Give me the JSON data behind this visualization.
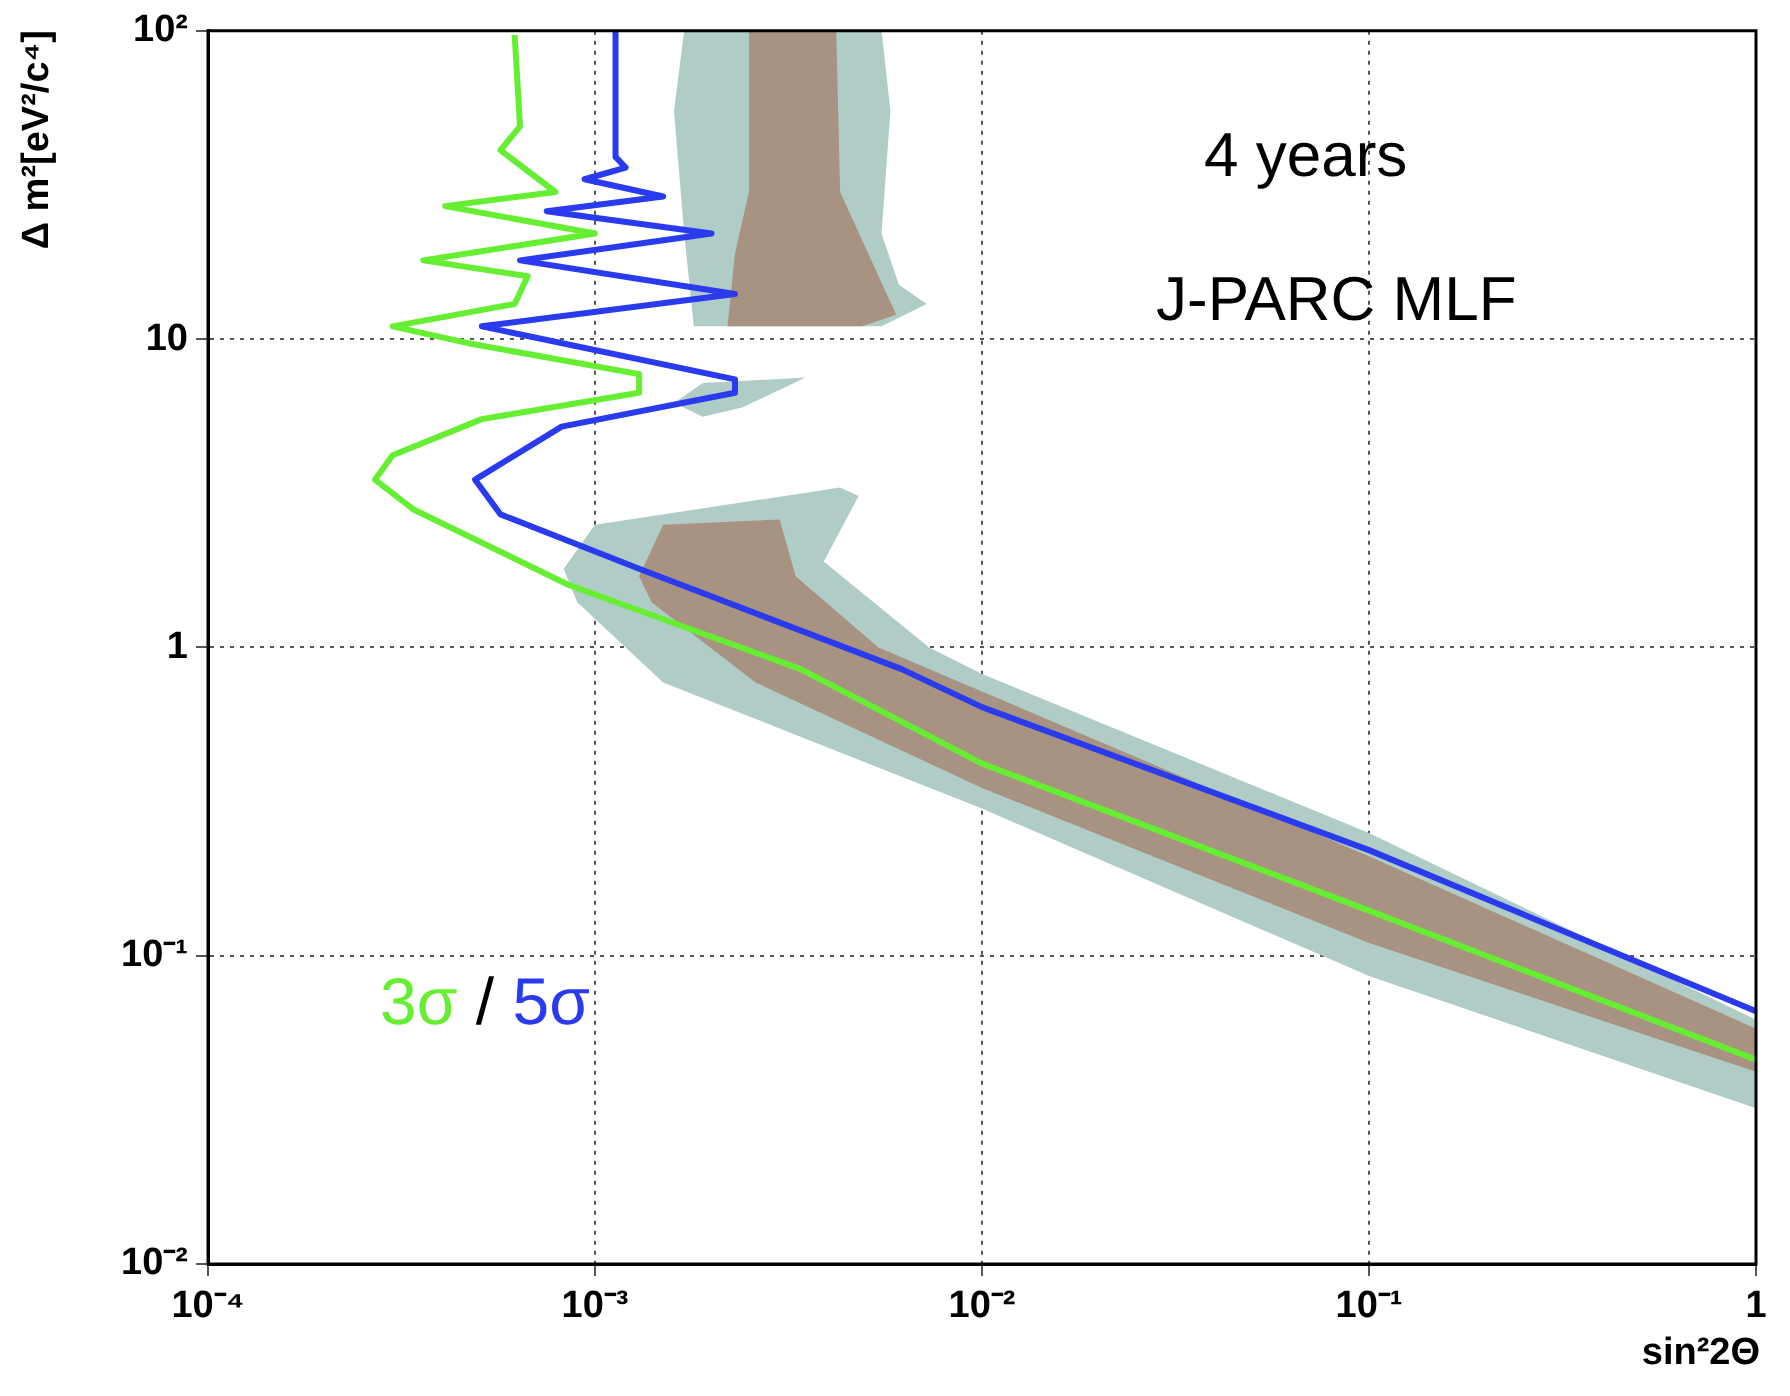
{
  "chart_data": {
    "type": "line",
    "xlabel": "sin²2Θ",
    "ylabel": "Δ m²[eV²/c⁴]",
    "log": "xy",
    "grid": true,
    "legend": false,
    "marker": "none",
    "xlim": [
      0.0001,
      1
    ],
    "ylim": [
      0.01,
      100
    ],
    "xticks": [
      {
        "value": 0.0001,
        "label": "10⁻⁴"
      },
      {
        "value": 0.001,
        "label": "10⁻³"
      },
      {
        "value": 0.01,
        "label": "10⁻²"
      },
      {
        "value": 0.1,
        "label": "10⁻¹"
      },
      1
    ],
    "yticks": [
      {
        "value": 0.01,
        "label": "10⁻²"
      },
      {
        "value": 0.1,
        "label": "10⁻¹"
      },
      1,
      10,
      {
        "value": 100,
        "label": "10²"
      }
    ],
    "annotations": [
      "4 years",
      "J-PARC MLF",
      "/"
    ],
    "series": [
      {
        "type": "area",
        "color": "#b0ccc6",
        "x": [
          0.0017,
          0.0055,
          0.0058,
          0.0055,
          0.0061,
          0.0072,
          0.0055,
          0.0018,
          0.0017,
          0.0016
        ],
        "values": [
          100,
          100,
          55,
          22,
          15,
          13,
          11,
          11,
          22,
          55
        ]
      },
      {
        "type": "area",
        "color": "#b0ccc6",
        "x": [
          0.0016,
          0.0019,
          0.0035,
          0.0024,
          0.0019
        ],
        "values": [
          6.2,
          7.2,
          7.5,
          6.0,
          5.6
        ]
      },
      {
        "type": "area",
        "color": "#b0ccc6",
        "x": [
          0.00083,
          0.001,
          0.0043,
          0.0048,
          0.0039,
          0.0073,
          0.01,
          0.1,
          1,
          1,
          0.1,
          0.01,
          0.0015,
          0.0009
        ],
        "values": [
          1.8,
          2.5,
          3.3,
          3.1,
          1.9,
          1.0,
          0.82,
          0.25,
          0.062,
          0.032,
          0.086,
          0.3,
          0.77,
          1.4
        ]
      },
      {
        "type": "area",
        "color": "#a89282",
        "x": [
          0.0025,
          0.0042,
          0.0043,
          0.006,
          0.0049,
          0.0022,
          0.0023,
          0.0025
        ],
        "values": [
          100,
          100,
          30,
          12,
          11,
          11,
          19,
          30
        ]
      },
      {
        "type": "area",
        "color": "#a89282",
        "x": [
          0.0013,
          0.0015,
          0.003,
          0.0033,
          0.0054,
          0.01,
          0.1,
          1,
          1,
          0.1,
          0.01,
          0.0026,
          0.0014
        ],
        "values": [
          1.7,
          2.5,
          2.6,
          1.7,
          1.0,
          0.72,
          0.21,
          0.058,
          0.042,
          0.11,
          0.35,
          0.77,
          1.4
        ]
      },
      {
        "type": "line",
        "name": "3σ",
        "color": "#66ee33",
        "x": [
          0.00062,
          0.00064,
          0.00057,
          0.00079,
          0.00041,
          0.001,
          0.00036,
          0.00067,
          0.00062,
          0.0003,
          0.00047,
          0.0013,
          0.0013,
          0.00051,
          0.0003,
          0.00027,
          0.00034,
          0.00085,
          0.0034,
          0.01,
          0.1,
          1
        ],
        "values": [
          97,
          49,
          41,
          30,
          27,
          22,
          18,
          16,
          13,
          11,
          9.7,
          7.7,
          6.7,
          5.5,
          4.2,
          3.5,
          2.8,
          1.6,
          0.85,
          0.42,
          0.14,
          0.046
        ]
      },
      {
        "type": "line",
        "name": "5σ",
        "color": "#2a3aee",
        "x": [
          0.00113,
          0.00113,
          0.0012,
          0.00094,
          0.0015,
          0.00075,
          0.002,
          0.00064,
          0.0023,
          0.00051,
          0.0023,
          0.0023,
          0.00082,
          0.00049,
          0.00057,
          0.0013,
          0.0062,
          0.01,
          0.1,
          1
        ],
        "values": [
          100,
          39,
          36,
          33,
          29,
          26,
          22,
          18,
          14,
          11,
          7.4,
          6.7,
          5.2,
          3.5,
          2.7,
          1.8,
          0.85,
          0.64,
          0.22,
          0.066
        ]
      }
    ]
  }
}
